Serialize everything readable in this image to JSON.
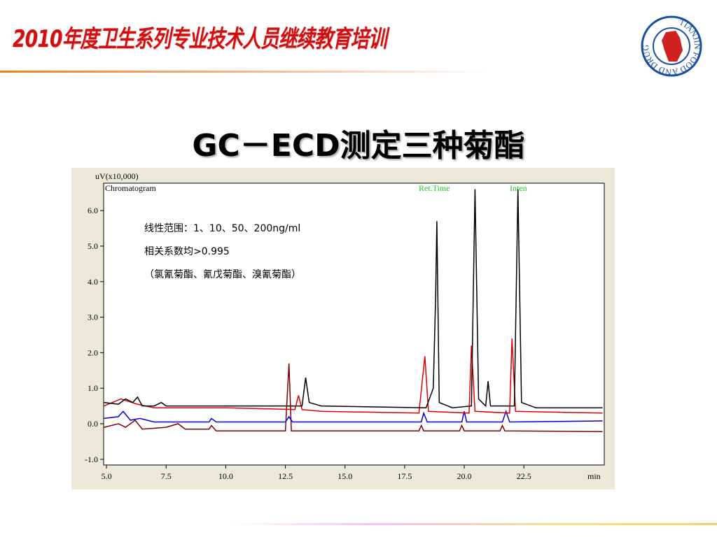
{
  "header": {
    "title": "2010年度卫生系列专业技术人员继续教育培训"
  },
  "logo_text": "TIANJIN FOOD AND DRUG ADMINISTRATION",
  "slide_title": "GC－ECD测定三种菊酯",
  "chart_data": {
    "type": "line",
    "y_label": "uV(x10,000)",
    "x_label": "min",
    "annotations": [
      "Chromatogram",
      "Ret.Time",
      "Inten"
    ],
    "notes": [
      "线性范围：1、10、50、200ng/ml",
      "相关系数均>0.995",
      "（氯氰菊酯、氰戊菊酯、溴氰菊酯）"
    ],
    "xlim": [
      4.88,
      25.87
    ],
    "ylim": [
      -1.16,
      6.77
    ],
    "xticks": [
      {
        "value": 5,
        "label": "5.0"
      },
      {
        "value": 7.5,
        "label": "7.5"
      },
      {
        "value": 10,
        "label": "10.0"
      },
      {
        "value": 12.5,
        "label": "12.5"
      },
      {
        "value": 15,
        "label": "15.0"
      },
      {
        "value": 17.5,
        "label": "17.5"
      },
      {
        "value": 20,
        "label": "20.0"
      },
      {
        "value": 22.5,
        "label": "22.5"
      }
    ],
    "yticks": [
      {
        "value": -1,
        "label": "-1.0"
      },
      {
        "value": 0,
        "label": "0.0"
      },
      {
        "value": 1,
        "label": "1.0"
      },
      {
        "value": 2,
        "label": "2.0"
      },
      {
        "value": 3,
        "label": "3.0"
      },
      {
        "value": 4,
        "label": "4.0"
      },
      {
        "value": 5,
        "label": "5.0"
      },
      {
        "value": 6,
        "label": "6.0"
      }
    ],
    "series": [
      {
        "color": "#000000",
        "x": [
          4.9,
          5.5,
          5.8,
          6.1,
          6.3,
          6.5,
          7,
          7.3,
          7.5,
          10,
          13.2,
          13.35,
          13.5,
          14,
          18.4,
          18.7,
          18.8,
          18.85,
          18.95,
          19.5,
          20.3,
          20.45,
          20.6,
          20.9,
          21.0,
          21.1,
          22.1,
          22.25,
          22.4,
          23,
          25.8
        ],
        "values": [
          0.6,
          0.55,
          0.7,
          0.6,
          0.75,
          0.5,
          0.5,
          0.6,
          0.5,
          0.5,
          0.5,
          1.3,
          0.6,
          0.5,
          0.45,
          1.0,
          3.6,
          5.7,
          0.6,
          0.45,
          0.5,
          6.6,
          0.7,
          0.5,
          1.2,
          0.5,
          0.5,
          6.6,
          0.6,
          0.45,
          0.45
        ]
      },
      {
        "color": "#e00000",
        "x": [
          4.9,
          5.6,
          6.3,
          7,
          10,
          12.9,
          13.05,
          13.2,
          14,
          18.1,
          18.35,
          18.5,
          20.2,
          20.3,
          20.45,
          21.9,
          22.0,
          22.15,
          25.8
        ],
        "values": [
          0.5,
          0.7,
          0.55,
          0.45,
          0.45,
          0.4,
          0.8,
          0.4,
          0.35,
          0.3,
          1.9,
          0.35,
          0.3,
          2.2,
          0.35,
          0.3,
          2.4,
          0.35,
          0.3
        ]
      },
      {
        "color": "#0000e0",
        "x": [
          4.9,
          5.5,
          5.7,
          6,
          6.4,
          7,
          9.3,
          9.4,
          9.6,
          12.5,
          12.65,
          12.8,
          18.2,
          18.3,
          18.45,
          19.9,
          20.0,
          20.1,
          21.6,
          21.75,
          21.9,
          25.8
        ],
        "values": [
          0.15,
          0.2,
          0.35,
          0.1,
          0.15,
          0.05,
          0.05,
          0.15,
          0.05,
          0.05,
          0.2,
          0.05,
          0.05,
          0.3,
          0.05,
          0.05,
          0.35,
          0.05,
          0.05,
          0.35,
          0.05,
          0.08
        ]
      },
      {
        "color": "#800000",
        "x": [
          4.9,
          5.5,
          5.8,
          6.2,
          6.5,
          7.5,
          8,
          8.3,
          9.3,
          9.4,
          9.6,
          12.5,
          12.65,
          12.75,
          15,
          18.1,
          18.2,
          18.3,
          19.8,
          19.9,
          20.0,
          21.5,
          21.6,
          21.7,
          25.8
        ],
        "values": [
          -0.1,
          0.0,
          -0.1,
          0.1,
          -0.15,
          -0.1,
          0.0,
          -0.15,
          -0.15,
          -0.05,
          -0.2,
          -0.2,
          1.7,
          -0.2,
          -0.2,
          -0.2,
          -0.05,
          -0.2,
          -0.2,
          -0.05,
          -0.2,
          -0.2,
          -0.05,
          -0.2,
          -0.22
        ]
      }
    ]
  }
}
